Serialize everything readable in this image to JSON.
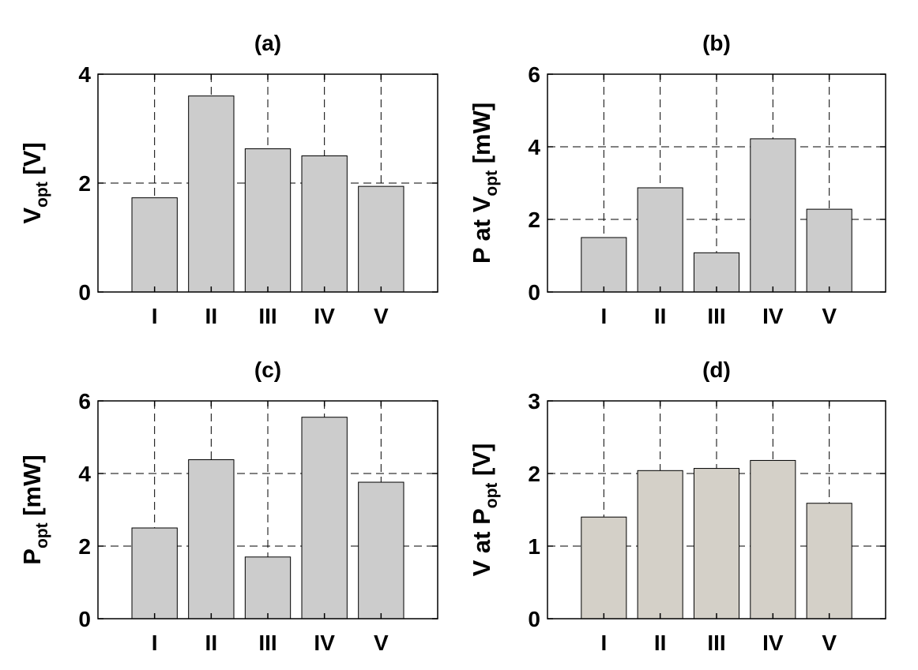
{
  "chart_data": [
    {
      "type": "bar",
      "title": "(a)",
      "categories": [
        "I",
        "II",
        "III",
        "IV",
        "V"
      ],
      "values": [
        1.73,
        3.6,
        2.63,
        2.5,
        1.94
      ],
      "ylabel": {
        "main": "V",
        "sub": "opt",
        "rest": " [V]"
      },
      "ylim": [
        0,
        4
      ],
      "yticks": [
        "0",
        "2",
        "4"
      ],
      "grid": true,
      "bar_color": "#cccccc"
    },
    {
      "type": "bar",
      "title": "(b)",
      "categories": [
        "I",
        "II",
        "III",
        "IV",
        "V"
      ],
      "values": [
        1.5,
        2.87,
        1.08,
        4.22,
        2.28
      ],
      "ylabel": {
        "main": "P at V",
        "sub": "opt",
        "rest": " [mW]"
      },
      "ylim": [
        0,
        6
      ],
      "yticks": [
        "0",
        "2",
        "4",
        "6"
      ],
      "grid": true,
      "bar_color": "#cccccc"
    },
    {
      "type": "bar",
      "title": "(c)",
      "categories": [
        "I",
        "II",
        "III",
        "IV",
        "V"
      ],
      "values": [
        2.5,
        4.38,
        1.7,
        5.55,
        3.76
      ],
      "ylabel": {
        "main": "P",
        "sub": "opt",
        "rest": " [mW]"
      },
      "ylim": [
        0,
        6
      ],
      "yticks": [
        "0",
        "2",
        "4",
        "6"
      ],
      "grid": true,
      "bar_color": "#cccccc"
    },
    {
      "type": "bar",
      "title": "(d)",
      "categories": [
        "I",
        "II",
        "III",
        "IV",
        "V"
      ],
      "values": [
        1.4,
        2.04,
        2.07,
        2.18,
        1.59
      ],
      "ylabel": {
        "main": "V at P",
        "sub": "opt",
        "rest": " [V]"
      },
      "ylim": [
        0,
        3
      ],
      "yticks": [
        "0",
        "1",
        "2",
        "3"
      ],
      "grid": true,
      "bar_color": "#d4d0c8"
    }
  ]
}
